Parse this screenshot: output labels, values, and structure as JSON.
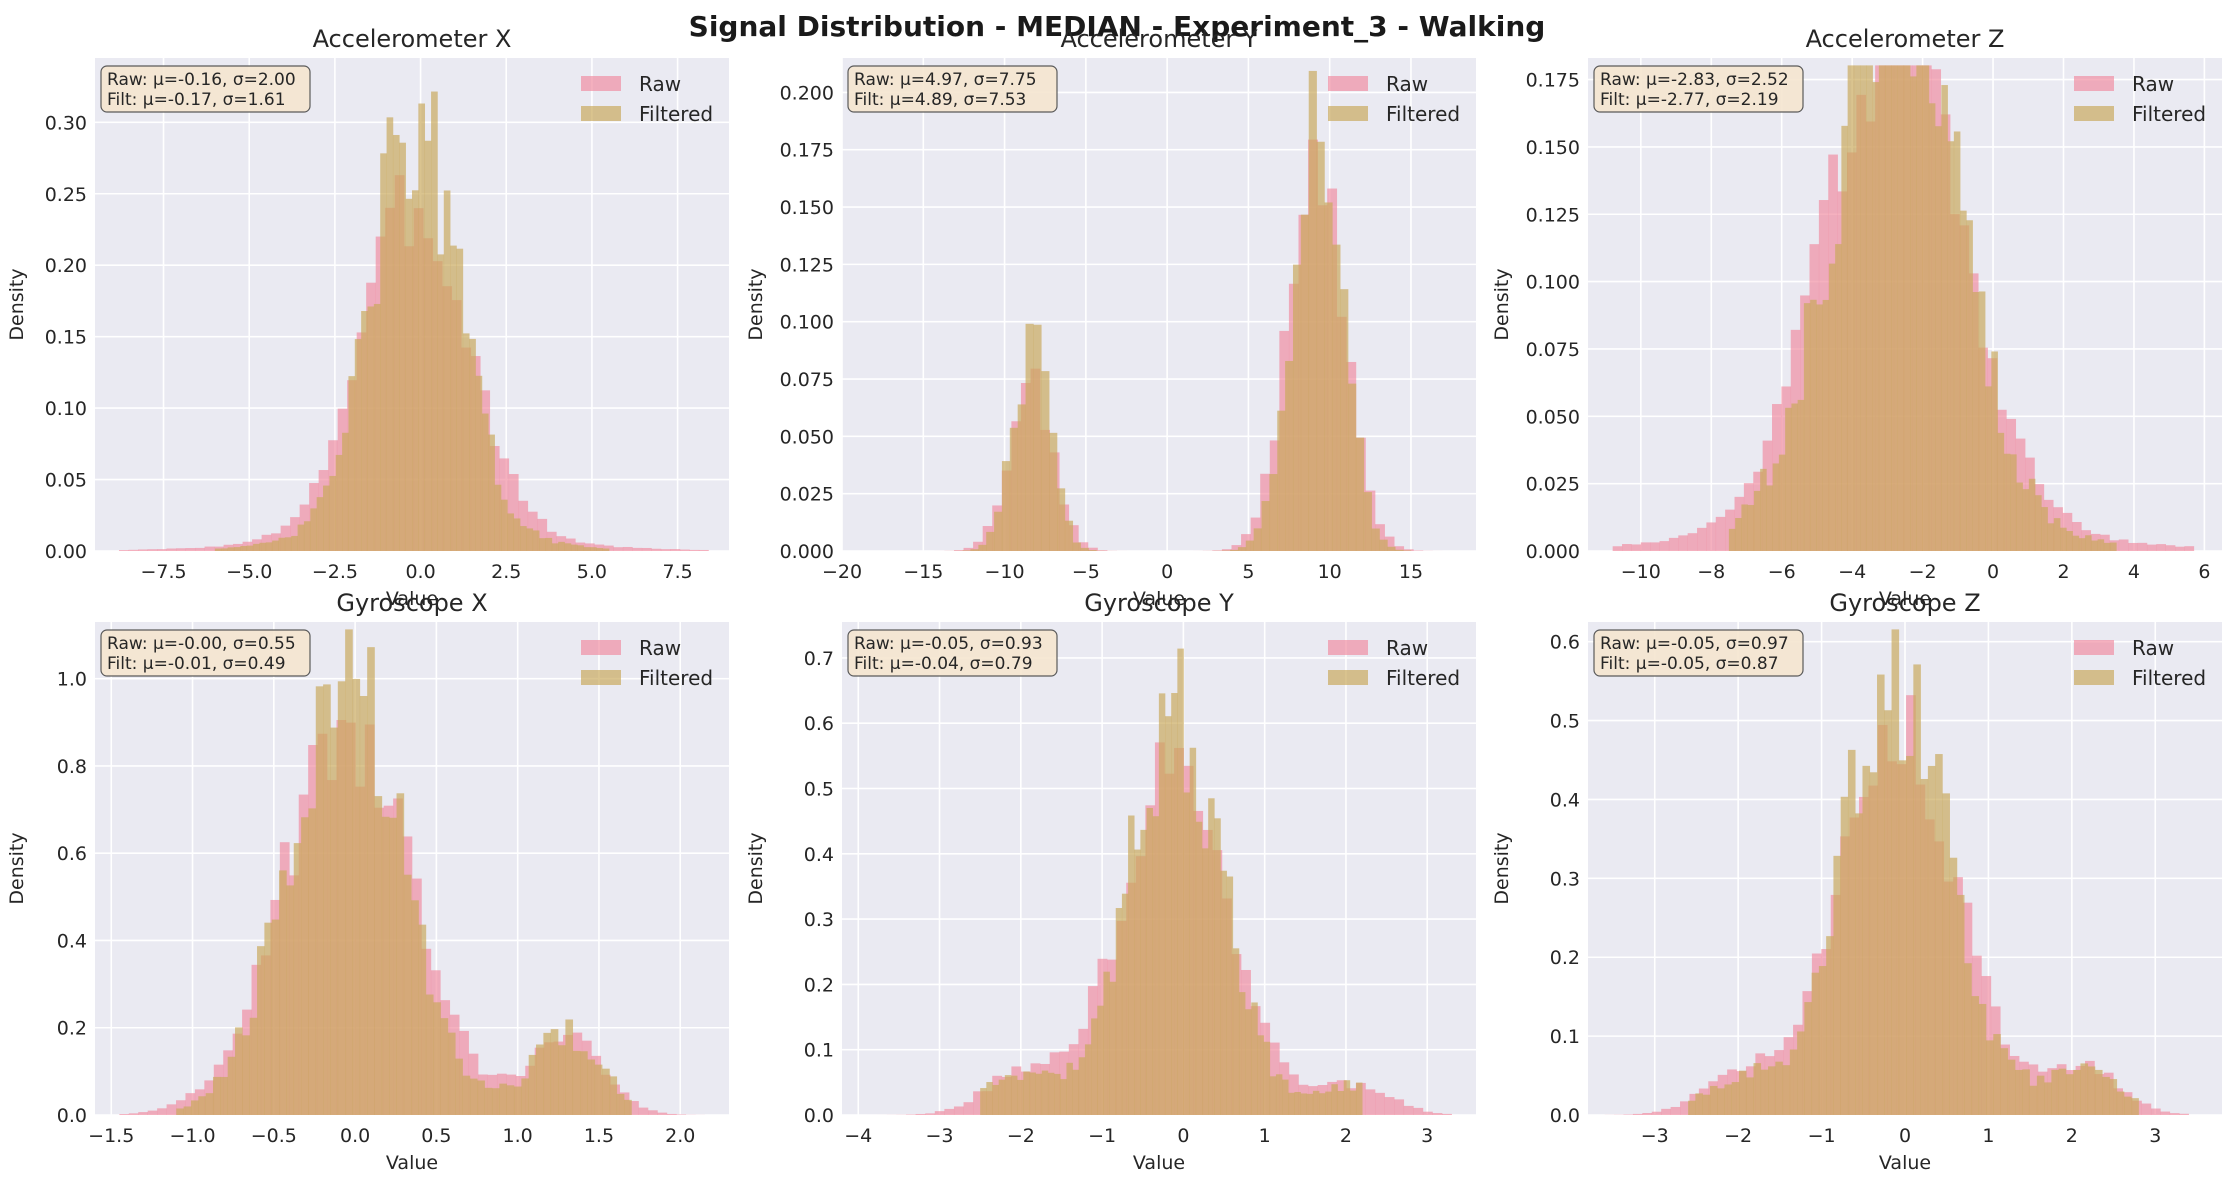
{
  "figure": {
    "title": "Signal Distribution - MEDIAN - Experiment_3 - Walking",
    "colors": {
      "raw": "#f08ca0",
      "filtered": "#c9a85a",
      "axes_bg": "#eaeaf2",
      "grid": "#ffffff",
      "stats_box": "#f5e6cf"
    }
  },
  "legend_labels": [
    "Raw",
    "Filtered"
  ],
  "chart_data": [
    {
      "type": "histogram",
      "title": "Accelerometer X",
      "xlabel": "Value",
      "ylabel": "Density",
      "xlim": [
        -9.5,
        9.0
      ],
      "ylim": [
        0,
        0.345
      ],
      "xticks": [
        -7.5,
        -5.0,
        -2.5,
        0.0,
        2.5,
        5.0,
        7.5
      ],
      "xtick_labels": [
        "−7.5",
        "−5.0",
        "−2.5",
        "0.0",
        "2.5",
        "5.0",
        "7.5"
      ],
      "yticks": [
        0.0,
        0.05,
        0.1,
        0.15,
        0.2,
        0.25,
        0.3
      ],
      "ytick_labels": [
        "0.00",
        "0.05",
        "0.10",
        "0.15",
        "0.20",
        "0.25",
        "0.30"
      ],
      "stats": {
        "raw": "Raw: μ=-0.16, σ=2.00",
        "filtered": "Filt: μ=-0.17, σ=1.61"
      },
      "series": [
        {
          "name": "Raw",
          "mean": -0.16,
          "std": 2.0,
          "range": [
            -8.8,
            8.4
          ]
        },
        {
          "name": "Filtered",
          "mean": -0.17,
          "std": 1.61,
          "range": [
            -6.0,
            5.5
          ]
        }
      ],
      "legend": "top-right"
    },
    {
      "type": "histogram",
      "title": "Accelerometer Y",
      "xlabel": "Value",
      "ylabel": "Density",
      "xlim": [
        -20.0,
        19.0
      ],
      "ylim": [
        0,
        0.215
      ],
      "xticks": [
        -20,
        -15,
        -10,
        -5,
        0,
        5,
        10,
        15
      ],
      "xtick_labels": [
        "−20",
        "−15",
        "−10",
        "−5",
        "0",
        "5",
        "10",
        "15"
      ],
      "yticks": [
        0.0,
        0.025,
        0.05,
        0.075,
        0.1,
        0.125,
        0.15,
        0.175,
        0.2
      ],
      "ytick_labels": [
        "0.000",
        "0.025",
        "0.050",
        "0.075",
        "0.100",
        "0.125",
        "0.150",
        "0.175",
        "0.200"
      ],
      "stats": {
        "raw": "Raw: μ=4.97, σ=7.75",
        "filtered": "Filt: μ=4.89, σ=7.53"
      },
      "series": [
        {
          "name": "Raw",
          "mean": 4.97,
          "std": 7.75,
          "range": [
            -19.0,
            17.5
          ]
        },
        {
          "name": "Filtered",
          "mean": 4.89,
          "std": 7.53,
          "range": [
            -15.0,
            15.0
          ]
        }
      ],
      "legend": "top-right"
    },
    {
      "type": "histogram",
      "title": "Accelerometer Z",
      "xlabel": "Value",
      "ylabel": "Density",
      "xlim": [
        -11.5,
        6.5
      ],
      "ylim": [
        0,
        0.183
      ],
      "xticks": [
        -10,
        -8,
        -6,
        -4,
        -2,
        0,
        2,
        4,
        6
      ],
      "xtick_labels": [
        "−10",
        "−8",
        "−6",
        "−4",
        "−2",
        "0",
        "2",
        "4",
        "6"
      ],
      "yticks": [
        0.0,
        0.025,
        0.05,
        0.075,
        0.1,
        0.125,
        0.15,
        0.175
      ],
      "ytick_labels": [
        "0.000",
        "0.025",
        "0.050",
        "0.075",
        "0.100",
        "0.125",
        "0.150",
        "0.175"
      ],
      "stats": {
        "raw": "Raw: μ=-2.83, σ=2.52",
        "filtered": "Filt: μ=-2.77, σ=2.19"
      },
      "series": [
        {
          "name": "Raw",
          "mean": -2.83,
          "std": 2.52,
          "range": [
            -10.8,
            5.7
          ]
        },
        {
          "name": "Filtered",
          "mean": -2.77,
          "std": 2.19,
          "range": [
            -7.5,
            3.5
          ]
        }
      ],
      "legend": "top-right"
    },
    {
      "type": "histogram",
      "title": "Gyroscope X",
      "xlabel": "Value",
      "ylabel": "Density",
      "xlim": [
        -1.6,
        2.3
      ],
      "ylim": [
        0,
        1.13
      ],
      "xticks": [
        -1.5,
        -1.0,
        -0.5,
        0.0,
        0.5,
        1.0,
        1.5,
        2.0
      ],
      "xtick_labels": [
        "−1.5",
        "−1.0",
        "−0.5",
        "0.0",
        "0.5",
        "1.0",
        "1.5",
        "2.0"
      ],
      "yticks": [
        0.0,
        0.2,
        0.4,
        0.6,
        0.8,
        1.0
      ],
      "ytick_labels": [
        "0.0",
        "0.2",
        "0.4",
        "0.6",
        "0.8",
        "1.0"
      ],
      "stats": {
        "raw": "Raw: μ=-0.00, σ=0.55",
        "filtered": "Filt: μ=-0.01, σ=0.49"
      },
      "series": [
        {
          "name": "Raw",
          "mean": -0.0,
          "std": 0.55,
          "range": [
            -1.45,
            2.15
          ]
        },
        {
          "name": "Filtered",
          "mean": -0.01,
          "std": 0.49,
          "range": [
            -1.1,
            1.7
          ]
        }
      ],
      "legend": "top-right"
    },
    {
      "type": "histogram",
      "title": "Gyroscope Y",
      "xlabel": "Value",
      "ylabel": "Density",
      "xlim": [
        -4.2,
        3.6
      ],
      "ylim": [
        0,
        0.755
      ],
      "xticks": [
        -4,
        -3,
        -2,
        -1,
        0,
        1,
        2,
        3
      ],
      "xtick_labels": [
        "−4",
        "−3",
        "−2",
        "−1",
        "0",
        "1",
        "2",
        "3"
      ],
      "yticks": [
        0.0,
        0.1,
        0.2,
        0.3,
        0.4,
        0.5,
        0.6,
        0.7
      ],
      "ytick_labels": [
        "0.0",
        "0.1",
        "0.2",
        "0.3",
        "0.4",
        "0.5",
        "0.6",
        "0.7"
      ],
      "stats": {
        "raw": "Raw: μ=-0.05, σ=0.93",
        "filtered": "Filt: μ=-0.04, σ=0.79"
      },
      "series": [
        {
          "name": "Raw",
          "mean": -0.05,
          "std": 0.93,
          "range": [
            -4.0,
            3.3
          ]
        },
        {
          "name": "Filtered",
          "mean": -0.04,
          "std": 0.79,
          "range": [
            -2.5,
            2.2
          ]
        }
      ],
      "legend": "top-right"
    },
    {
      "type": "histogram",
      "title": "Gyroscope Z",
      "xlabel": "Value",
      "ylabel": "Density",
      "xlim": [
        -3.8,
        3.8
      ],
      "ylim": [
        0,
        0.625
      ],
      "xticks": [
        -3,
        -2,
        -1,
        0,
        1,
        2,
        3
      ],
      "xtick_labels": [
        "−3",
        "−2",
        "−1",
        "0",
        "1",
        "2",
        "3"
      ],
      "yticks": [
        0.0,
        0.1,
        0.2,
        0.3,
        0.4,
        0.5,
        0.6
      ],
      "ytick_labels": [
        "0.0",
        "0.1",
        "0.2",
        "0.3",
        "0.4",
        "0.5",
        "0.6"
      ],
      "stats": {
        "raw": "Raw: μ=-0.05, σ=0.97",
        "filtered": "Filt: μ=-0.05, σ=0.87"
      },
      "series": [
        {
          "name": "Raw",
          "mean": -0.05,
          "std": 0.97,
          "range": [
            -3.6,
            3.4
          ]
        },
        {
          "name": "Filtered",
          "mean": -0.05,
          "std": 0.87,
          "range": [
            -2.6,
            2.8
          ]
        }
      ],
      "legend": "top-right"
    }
  ]
}
